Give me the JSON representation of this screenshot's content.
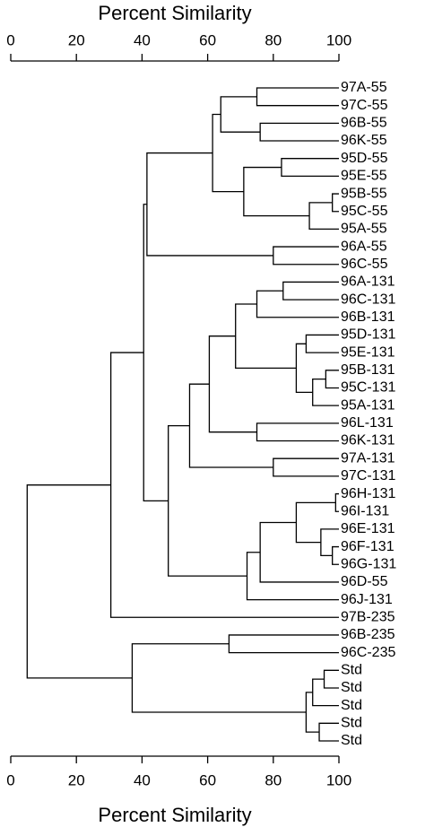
{
  "chart_data": {
    "type": "dendrogram",
    "xlabel": "Percent Similarity",
    "xlim": [
      0,
      100
    ],
    "xticks": [
      0,
      20,
      40,
      60,
      80,
      100
    ],
    "leaves": [
      "97A-55",
      "97C-55",
      "96B-55",
      "96K-55",
      "95D-55",
      "95E-55",
      "95B-55",
      "95C-55",
      "95A-55",
      "96A-55",
      "96C-55",
      "96A-131",
      "96C-131",
      "96B-131",
      "95D-131",
      "95E-131",
      "95B-131",
      "95C-131",
      "95A-131",
      "96L-131",
      "96K-131",
      "97A-131",
      "97C-131",
      "96H-131",
      "96I-131",
      "96E-131",
      "96F-131",
      "96G-131",
      "96D-55",
      "96J-131",
      "97B-235",
      "96B-235",
      "96C-235",
      "Std",
      "Std",
      "Std",
      "Std",
      "Std"
    ],
    "merges": [
      [
        0,
        1,
        75
      ],
      [
        2,
        3,
        76
      ],
      [
        38,
        39,
        64
      ],
      [
        4,
        5,
        82.5
      ],
      [
        6,
        7,
        98
      ],
      [
        42,
        8,
        91
      ],
      [
        41,
        43,
        71
      ],
      [
        40,
        44,
        61.5
      ],
      [
        9,
        10,
        80
      ],
      [
        45,
        46,
        41.5
      ],
      [
        11,
        12,
        83
      ],
      [
        48,
        13,
        75
      ],
      [
        14,
        15,
        90
      ],
      [
        16,
        17,
        96
      ],
      [
        51,
        18,
        92
      ],
      [
        50,
        52,
        87
      ],
      [
        49,
        53,
        68.5
      ],
      [
        19,
        20,
        75
      ],
      [
        54,
        55,
        60.5
      ],
      [
        21,
        22,
        80
      ],
      [
        56,
        57,
        54.5
      ],
      [
        23,
        24,
        99
      ],
      [
        26,
        27,
        98
      ],
      [
        25,
        60,
        94.5
      ],
      [
        59,
        61,
        87
      ],
      [
        62,
        28,
        76
      ],
      [
        63,
        29,
        72
      ],
      [
        58,
        64,
        48
      ],
      [
        47,
        65,
        40.5
      ],
      [
        66,
        30,
        30.5
      ],
      [
        31,
        32,
        66.5
      ],
      [
        33,
        34,
        95.5
      ],
      [
        69,
        35,
        92
      ],
      [
        36,
        37,
        94
      ],
      [
        70,
        71,
        90
      ],
      [
        68,
        72,
        37
      ],
      [
        67,
        73,
        5
      ]
    ]
  }
}
